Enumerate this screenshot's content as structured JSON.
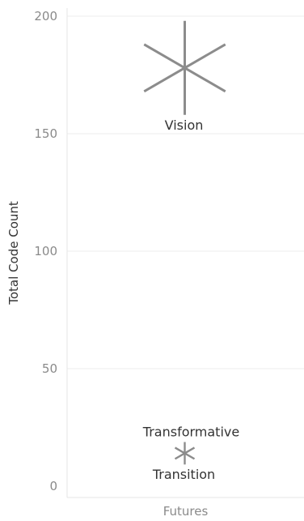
{
  "chart_data": {
    "type": "scatter",
    "ylabel": "Total Code Count",
    "xlabel": "",
    "categories": [
      "Futures"
    ],
    "ylim": [
      0,
      200
    ],
    "yticks": [
      0,
      50,
      100,
      150,
      200
    ],
    "grid": true,
    "mark_color": "#8c8c8c",
    "points": [
      {
        "label": "Vision",
        "category": "Futures",
        "y": 178,
        "label_position": "below"
      },
      {
        "label": "Transformative",
        "category": "Futures",
        "y": 14,
        "label_position": "above"
      },
      {
        "label": "Transition",
        "category": "Futures",
        "y": 14,
        "label_position": "below"
      }
    ]
  }
}
